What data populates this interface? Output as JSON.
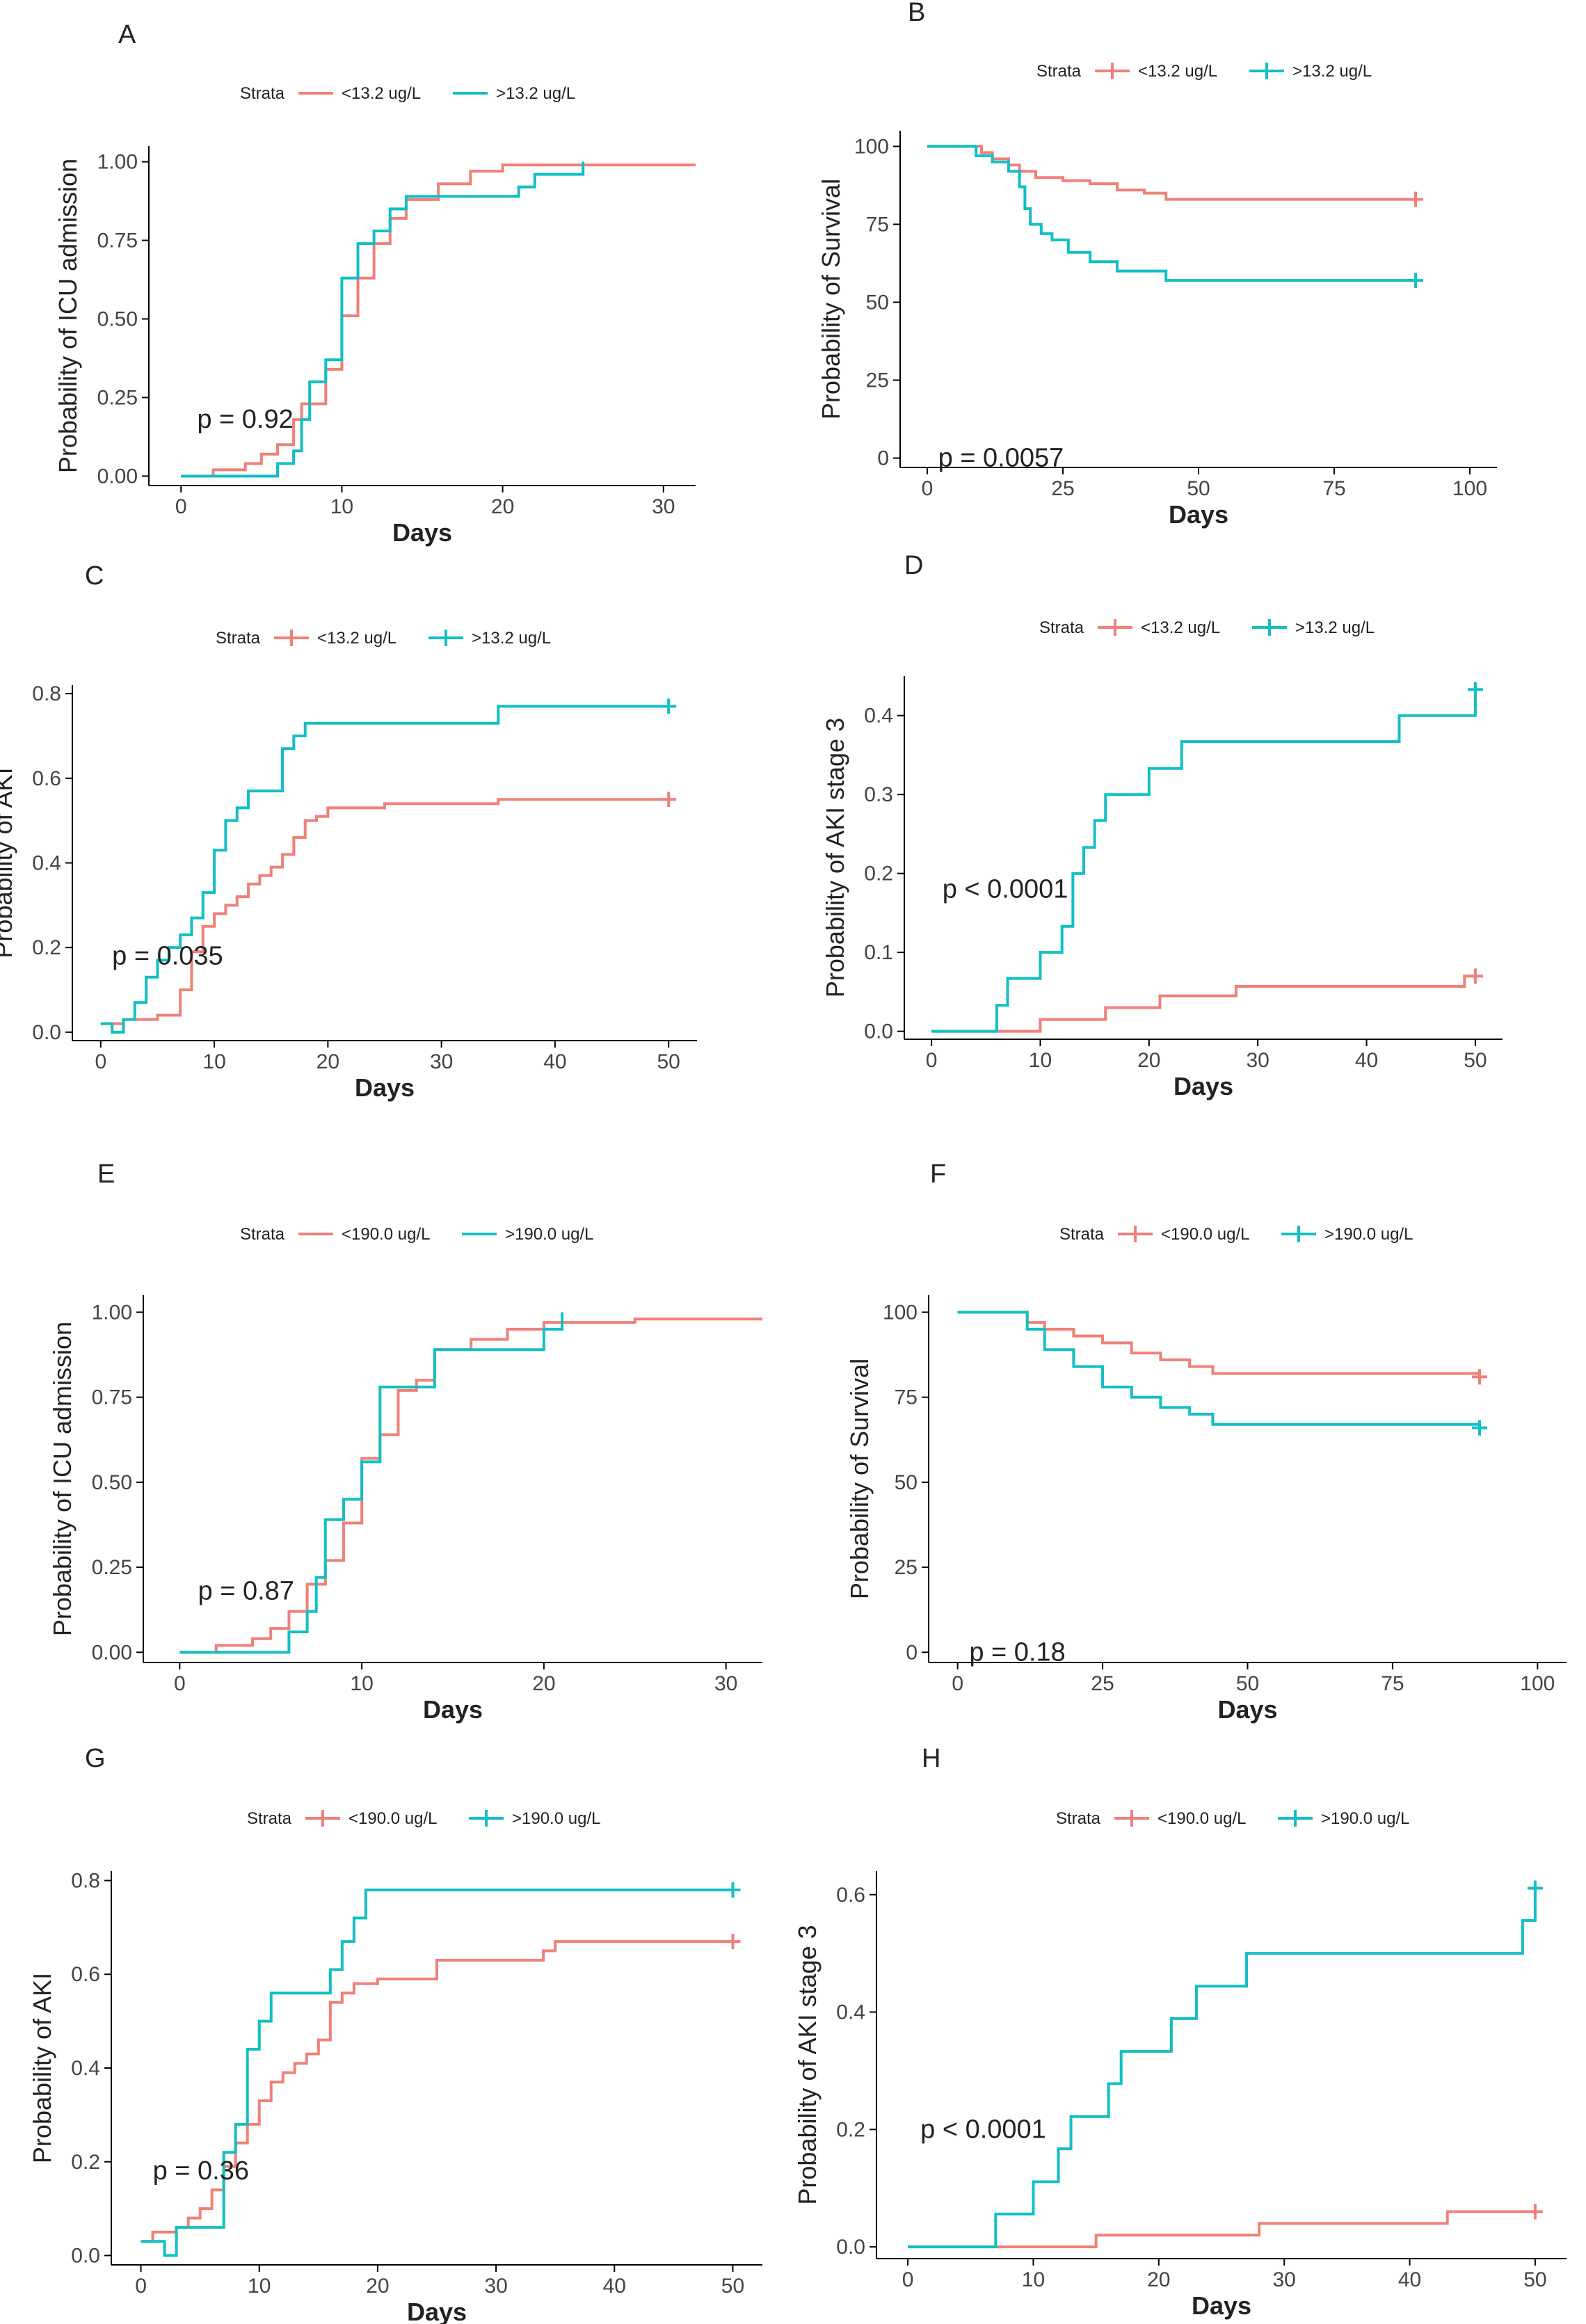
{
  "colors": {
    "low": "#f08078",
    "high": "#12bfc4",
    "axis": "#000000",
    "text": "#222222"
  },
  "chart_data": [
    {
      "panel": "A",
      "type": "line",
      "step": true,
      "legend_title": "Strata",
      "series": [
        {
          "name": "<13.2 ug/L",
          "color_key": "low",
          "censor": false,
          "x": [
            0,
            2,
            4,
            5,
            6,
            7,
            7.5,
            8,
            9,
            10,
            11,
            12,
            13,
            14,
            16,
            18,
            20,
            25,
            32
          ],
          "y": [
            0,
            0.02,
            0.04,
            0.07,
            0.1,
            0.18,
            0.23,
            0.23,
            0.34,
            0.51,
            0.63,
            0.74,
            0.82,
            0.88,
            0.93,
            0.97,
            0.99,
            0.99,
            0.99
          ]
        },
        {
          "name": ">13.2 ug/L",
          "color_key": "high",
          "censor": false,
          "x": [
            0,
            6,
            7,
            7.5,
            8,
            9,
            10,
            11,
            12,
            13,
            14,
            16,
            20,
            21,
            22,
            25
          ],
          "y": [
            0,
            0.04,
            0.08,
            0.18,
            0.3,
            0.37,
            0.63,
            0.74,
            0.78,
            0.85,
            0.89,
            0.89,
            0.89,
            0.92,
            0.96,
            1.0
          ]
        }
      ],
      "p_value": "p = 0.92",
      "xlabel": "Days",
      "ylabel": "Probability of ICU admission",
      "xlim": [
        -2,
        32
      ],
      "ylim": [
        -0.03,
        1.05
      ],
      "xticks": [
        0,
        10,
        20,
        30
      ],
      "yticks": [
        0,
        0.25,
        0.5,
        0.75,
        1
      ],
      "ytick_labels": [
        "0.00",
        "0.25",
        "0.50",
        "0.75",
        "1.00"
      ],
      "p_pos": [
        1,
        0.18
      ]
    },
    {
      "panel": "B",
      "type": "line",
      "step": true,
      "legend_title": "Strata",
      "series": [
        {
          "name": "<13.2 ug/L",
          "color_key": "low",
          "censor": true,
          "x": [
            0,
            10,
            12,
            15,
            17,
            20,
            25,
            30,
            35,
            40,
            44,
            90
          ],
          "y": [
            100,
            98,
            96,
            94,
            92,
            90,
            89,
            88,
            86,
            85,
            83,
            83
          ]
        },
        {
          "name": ">13.2 ug/L",
          "color_key": "high",
          "censor": true,
          "x": [
            0,
            9,
            12,
            15,
            17,
            18,
            19,
            21,
            23,
            26,
            30,
            35,
            44,
            90
          ],
          "y": [
            100,
            97,
            95,
            92,
            87,
            80,
            75,
            72,
            70,
            66,
            63,
            60,
            57,
            57
          ]
        }
      ],
      "p_value": "p = 0.0057",
      "xlabel": "Days",
      "ylabel": "Probability of Survival",
      "xlim": [
        -5,
        105
      ],
      "ylim": [
        -3,
        105
      ],
      "xticks": [
        0,
        25,
        50,
        75,
        100
      ],
      "yticks": [
        0,
        25,
        50,
        75,
        100
      ],
      "ytick_labels": [
        "0",
        "25",
        "50",
        "75",
        "100"
      ],
      "p_pos": [
        2,
        0
      ]
    },
    {
      "panel": "C",
      "type": "line",
      "step": true,
      "legend_title": "Strata",
      "series": [
        {
          "name": "<13.2 ug/L",
          "color_key": "low",
          "censor": true,
          "x": [
            0,
            2,
            5,
            7,
            8,
            9,
            10,
            11,
            12,
            13,
            14,
            15,
            16,
            17,
            18,
            19,
            20,
            25,
            35,
            50
          ],
          "y": [
            0.02,
            0.03,
            0.04,
            0.1,
            0.19,
            0.25,
            0.28,
            0.3,
            0.32,
            0.35,
            0.37,
            0.39,
            0.42,
            0.46,
            0.5,
            0.51,
            0.53,
            0.54,
            0.55,
            0.55
          ]
        },
        {
          "name": ">13.2 ug/L",
          "color_key": "high",
          "censor": true,
          "x": [
            0,
            1,
            2,
            3,
            4,
            5,
            6,
            7,
            8,
            9,
            10,
            11,
            12,
            13,
            16,
            17,
            18,
            19,
            35,
            50
          ],
          "y": [
            0.02,
            0.0,
            0.03,
            0.07,
            0.13,
            0.17,
            0.2,
            0.23,
            0.27,
            0.33,
            0.43,
            0.5,
            0.53,
            0.57,
            0.67,
            0.7,
            0.73,
            0.73,
            0.77,
            0.77
          ]
        }
      ],
      "p_value": "p = 0.035",
      "xlabel": "Days",
      "ylabel": "Probability of AKI",
      "xlim": [
        -2.5,
        52.5
      ],
      "ylim": [
        -0.02,
        0.82
      ],
      "xticks": [
        0,
        10,
        20,
        30,
        40,
        50
      ],
      "yticks": [
        0,
        0.2,
        0.4,
        0.6,
        0.8
      ],
      "ytick_labels": [
        "0.0",
        "0.2",
        "0.4",
        "0.6",
        "0.8"
      ],
      "p_pos": [
        1,
        0.18
      ]
    },
    {
      "panel": "D",
      "type": "line",
      "step": true,
      "legend_title": "Strata",
      "series": [
        {
          "name": "<13.2 ug/L",
          "color_key": "low",
          "censor": true,
          "x": [
            0,
            6,
            10,
            16,
            21,
            28,
            49,
            50
          ],
          "y": [
            0,
            0,
            0.015,
            0.03,
            0.045,
            0.057,
            0.07,
            0.07
          ]
        },
        {
          "name": ">13.2 ug/L",
          "color_key": "high",
          "censor": true,
          "x": [
            0,
            6,
            7,
            10,
            12,
            13,
            14,
            15,
            16,
            17,
            20,
            23,
            27,
            43,
            50
          ],
          "y": [
            0,
            0.033,
            0.067,
            0.1,
            0.133,
            0.2,
            0.233,
            0.267,
            0.3,
            0.3,
            0.333,
            0.367,
            0.367,
            0.4,
            0.433
          ]
        }
      ],
      "p_value": "p < 0.0001",
      "xlabel": "Days",
      "ylabel": "Probability of AKI stage 3",
      "xlim": [
        -2.5,
        52.5
      ],
      "ylim": [
        -0.01,
        0.45
      ],
      "xticks": [
        0,
        10,
        20,
        30,
        40,
        50
      ],
      "yticks": [
        0,
        0.1,
        0.2,
        0.3,
        0.4
      ],
      "ytick_labels": [
        "0.0",
        "0.1",
        "0.2",
        "0.3",
        "0.4"
      ],
      "p_pos": [
        1,
        0.18
      ]
    },
    {
      "panel": "E",
      "type": "line",
      "step": true,
      "legend_title": "Strata",
      "series": [
        {
          "name": "<190.0 ug/L",
          "color_key": "low",
          "censor": false,
          "x": [
            0,
            2,
            4,
            5,
            6,
            7,
            7.5,
            8,
            9,
            10,
            11,
            12,
            13,
            14,
            16,
            18,
            20,
            25,
            32
          ],
          "y": [
            0,
            0.02,
            0.04,
            0.07,
            0.12,
            0.2,
            0.2,
            0.27,
            0.38,
            0.57,
            0.64,
            0.77,
            0.8,
            0.89,
            0.92,
            0.95,
            0.97,
            0.98,
            0.98
          ]
        },
        {
          "name": ">190.0 ug/L",
          "color_key": "high",
          "censor": false,
          "x": [
            0,
            6,
            7,
            7.5,
            8,
            9,
            10,
            11,
            12,
            13,
            14,
            20,
            21
          ],
          "y": [
            0,
            0.06,
            0.12,
            0.22,
            0.39,
            0.45,
            0.56,
            0.78,
            0.78,
            0.78,
            0.89,
            0.95,
            1.0
          ]
        }
      ],
      "p_value": "p = 0.87",
      "xlabel": "Days",
      "ylabel": "Probability of ICU admission",
      "xlim": [
        -2,
        32
      ],
      "ylim": [
        -0.03,
        1.05
      ],
      "xticks": [
        0,
        10,
        20,
        30
      ],
      "yticks": [
        0,
        0.25,
        0.5,
        0.75,
        1
      ],
      "ytick_labels": [
        "0.00",
        "0.25",
        "0.50",
        "0.75",
        "1.00"
      ],
      "p_pos": [
        1,
        0.18
      ]
    },
    {
      "panel": "F",
      "type": "line",
      "step": true,
      "legend_title": "Strata",
      "series": [
        {
          "name": "<190.0 ug/L",
          "color_key": "low",
          "censor": true,
          "x": [
            0,
            12,
            15,
            20,
            25,
            30,
            35,
            40,
            44,
            90
          ],
          "y": [
            100,
            97,
            95,
            93,
            91,
            88,
            86,
            84,
            82,
            81
          ]
        },
        {
          "name": ">190.0 ug/L",
          "color_key": "high",
          "censor": true,
          "x": [
            0,
            12,
            15,
            20,
            25,
            30,
            35,
            40,
            44,
            90
          ],
          "y": [
            100,
            95,
            89,
            84,
            78,
            75,
            72,
            70,
            67,
            66
          ]
        }
      ],
      "p_value": "p = 0.18",
      "xlabel": "Days",
      "ylabel": "Probability of Survival",
      "xlim": [
        -5,
        105
      ],
      "ylim": [
        -3,
        105
      ],
      "xticks": [
        0,
        25,
        50,
        75,
        100
      ],
      "yticks": [
        0,
        25,
        50,
        75,
        100
      ],
      "ytick_labels": [
        "0",
        "25",
        "50",
        "75",
        "100"
      ],
      "p_pos": [
        2,
        0
      ]
    },
    {
      "panel": "G",
      "type": "line",
      "step": true,
      "legend_title": "Strata",
      "series": [
        {
          "name": "<190.0 ug/L",
          "color_key": "low",
          "censor": true,
          "x": [
            0,
            1,
            3,
            4,
            5,
            6,
            7,
            8,
            9,
            10,
            11,
            12,
            13,
            14,
            15,
            16,
            17,
            18,
            19,
            20,
            25,
            34,
            35,
            50
          ],
          "y": [
            0.03,
            0.05,
            0.06,
            0.08,
            0.1,
            0.14,
            0.19,
            0.24,
            0.28,
            0.33,
            0.37,
            0.39,
            0.41,
            0.43,
            0.46,
            0.54,
            0.56,
            0.58,
            0.58,
            0.59,
            0.63,
            0.65,
            0.67,
            0.67
          ]
        },
        {
          "name": ">190.0 ug/L",
          "color_key": "high",
          "censor": true,
          "x": [
            0,
            2,
            3,
            7,
            8,
            9,
            10,
            11,
            12,
            16,
            17,
            18,
            19,
            50
          ],
          "y": [
            0.03,
            0.0,
            0.06,
            0.22,
            0.28,
            0.44,
            0.5,
            0.56,
            0.56,
            0.61,
            0.67,
            0.72,
            0.78,
            0.78
          ]
        }
      ],
      "p_value": "p = 0.36",
      "xlabel": "Days",
      "ylabel": "Probability of AKI",
      "xlim": [
        -2.5,
        52.5
      ],
      "ylim": [
        -0.02,
        0.82
      ],
      "xticks": [
        0,
        10,
        20,
        30,
        40,
        50
      ],
      "yticks": [
        0,
        0.2,
        0.4,
        0.6,
        0.8
      ],
      "ytick_labels": [
        "0.0",
        "0.2",
        "0.4",
        "0.6",
        "0.8"
      ],
      "p_pos": [
        1,
        0.18
      ]
    },
    {
      "panel": "H",
      "type": "line",
      "step": true,
      "legend_title": "Strata",
      "series": [
        {
          "name": "<190.0 ug/L",
          "color_key": "low",
          "censor": true,
          "x": [
            0,
            15,
            28,
            43,
            50
          ],
          "y": [
            0,
            0.02,
            0.04,
            0.06,
            0.06
          ]
        },
        {
          "name": ">190.0 ug/L",
          "color_key": "high",
          "censor": true,
          "x": [
            0,
            7,
            10,
            12,
            13,
            16,
            17,
            21,
            23,
            27,
            49,
            50
          ],
          "y": [
            0,
            0.056,
            0.111,
            0.167,
            0.222,
            0.278,
            0.333,
            0.389,
            0.444,
            0.5,
            0.556,
            0.611
          ]
        }
      ],
      "p_value": "p < 0.0001",
      "xlabel": "Days",
      "ylabel": "Probability of AKI stage 3",
      "xlim": [
        -2.5,
        52.5
      ],
      "ylim": [
        -0.02,
        0.64
      ],
      "xticks": [
        0,
        10,
        20,
        30,
        40,
        50
      ],
      "yticks": [
        0,
        0.2,
        0.4,
        0.6
      ],
      "ytick_labels": [
        "0.0",
        "0.2",
        "0.4",
        "0.6"
      ],
      "p_pos": [
        1,
        0.2
      ]
    }
  ]
}
